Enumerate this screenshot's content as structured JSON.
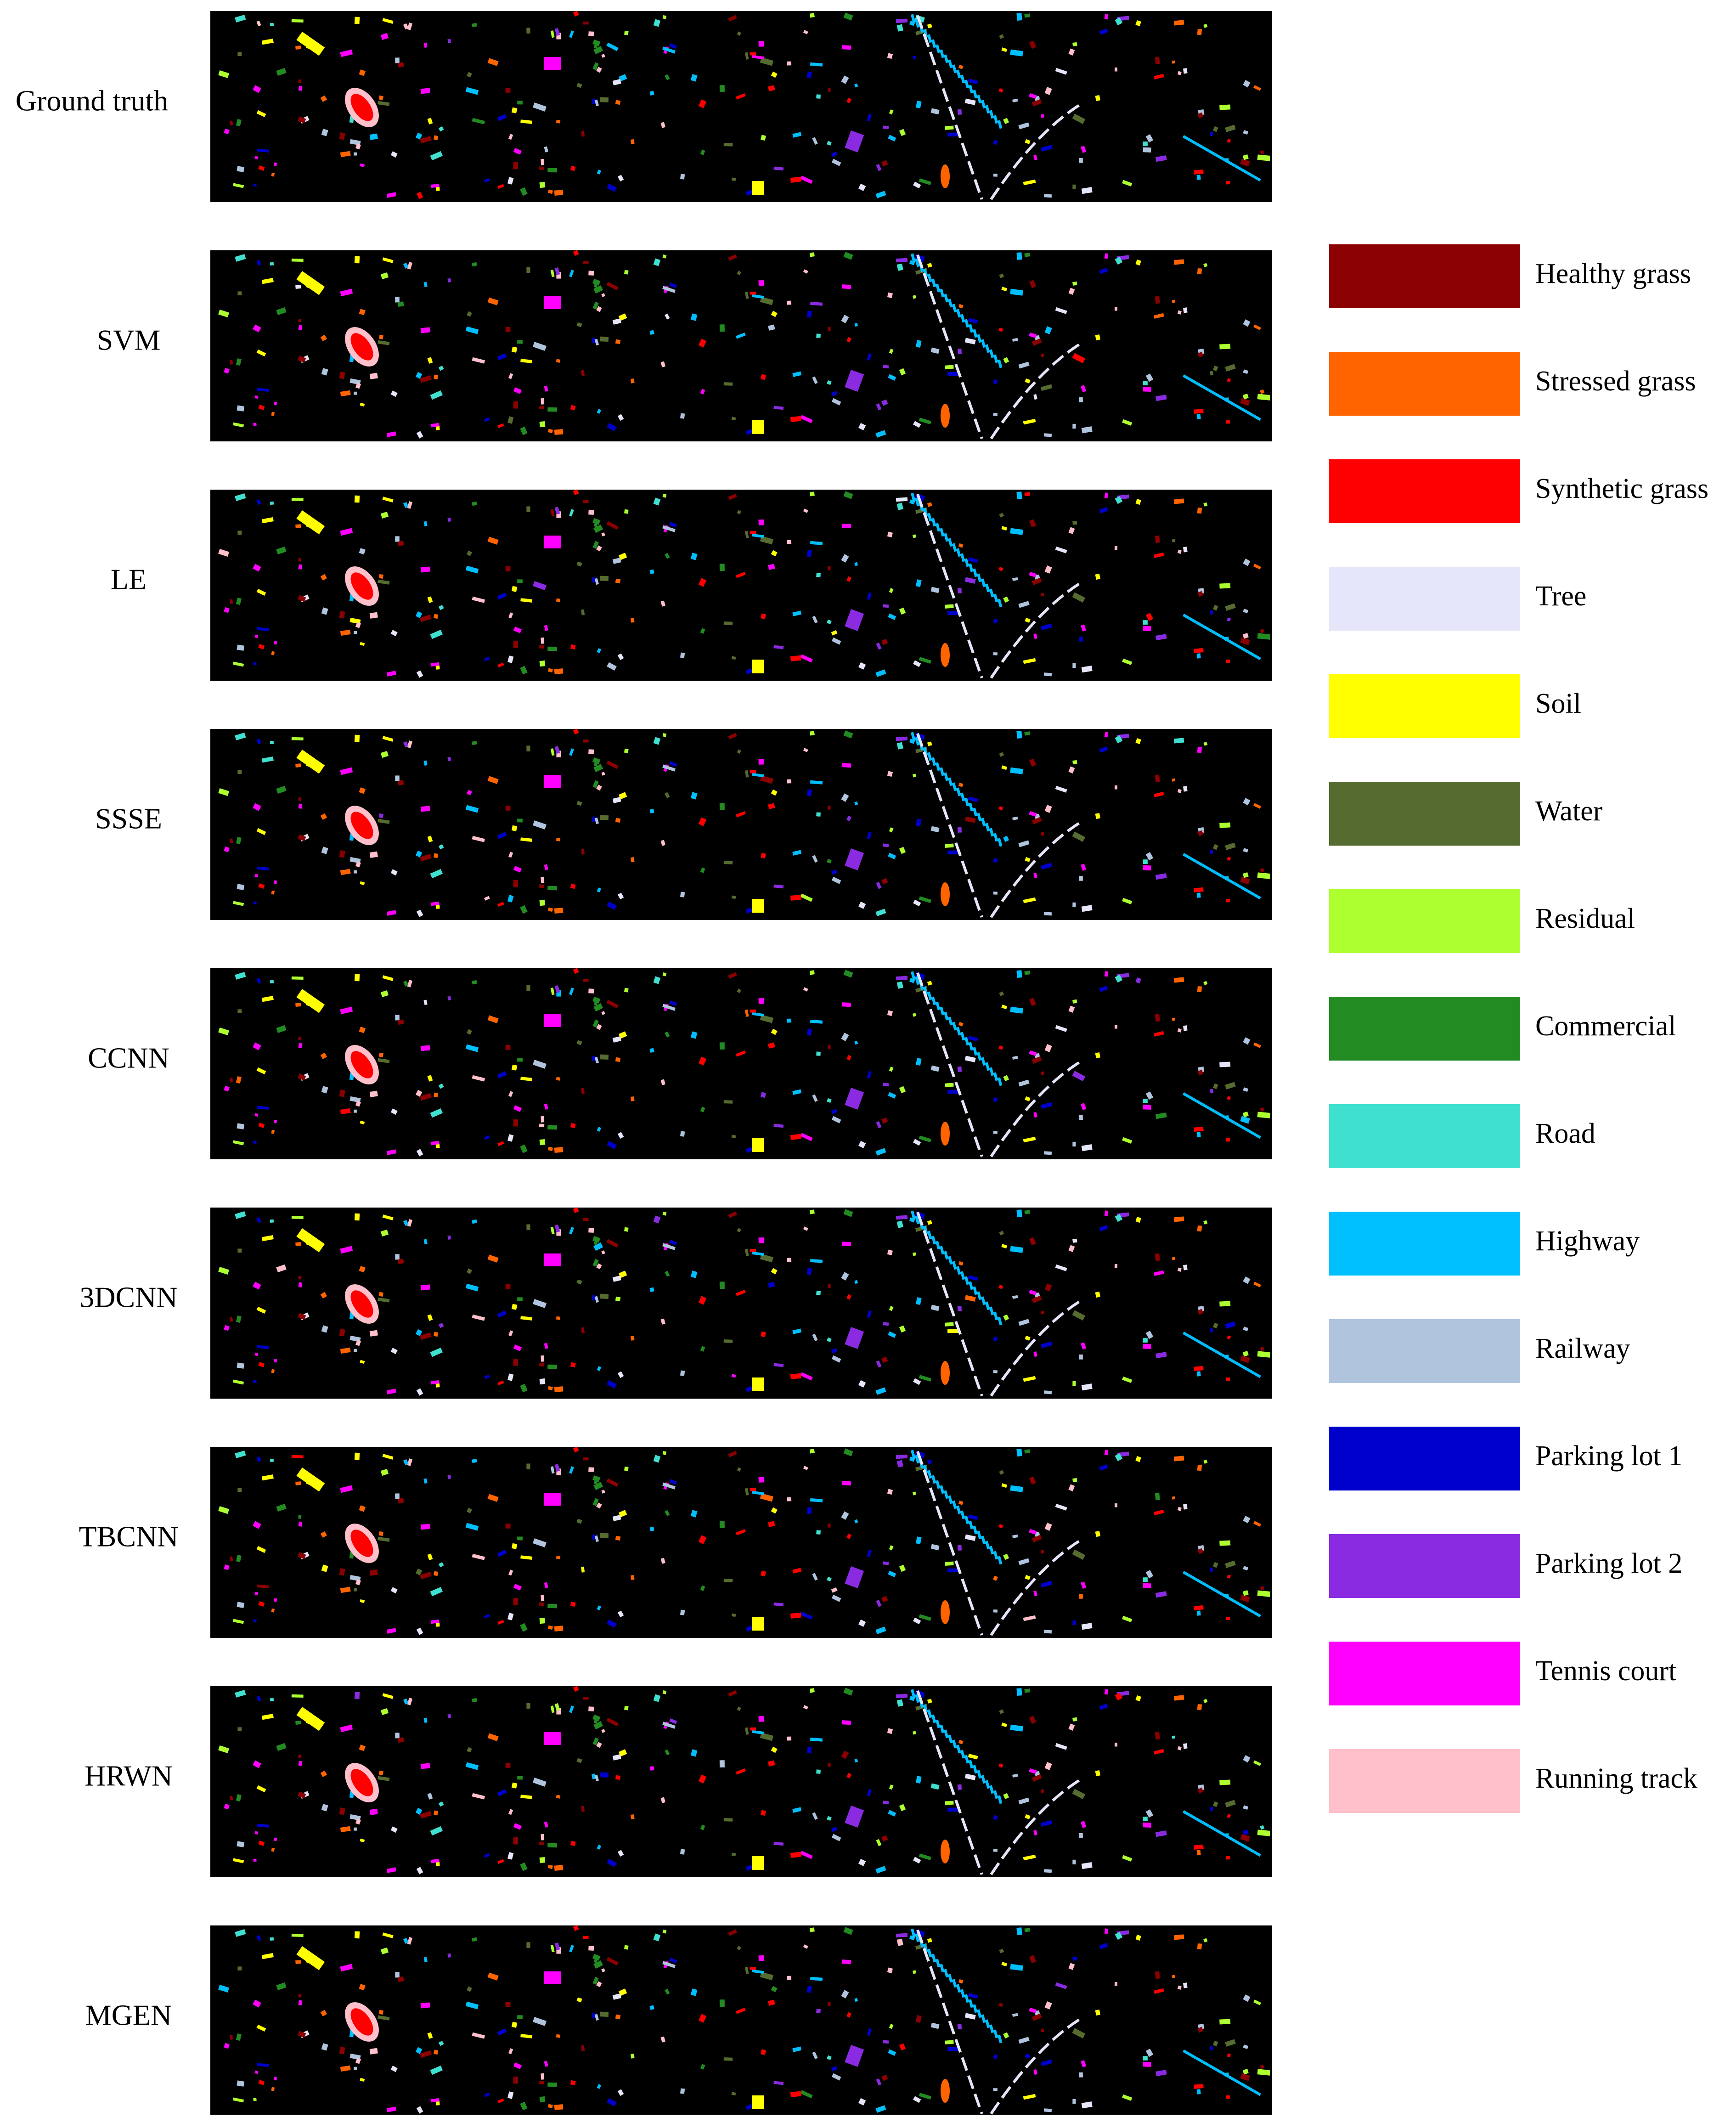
{
  "rows": [
    {
      "label": "Ground truth"
    },
    {
      "label": "SVM"
    },
    {
      "label": "LE"
    },
    {
      "label": "SSSE"
    },
    {
      "label": "CCNN"
    },
    {
      "label": "3DCNN"
    },
    {
      "label": "TBCNN"
    },
    {
      "label": "HRWN"
    },
    {
      "label": "MGEN"
    }
  ],
  "legend": [
    {
      "label": "Healthy grass",
      "color": "#8b0000"
    },
    {
      "label": "Stressed grass",
      "color": "#ff6400"
    },
    {
      "label": "Synthetic grass",
      "color": "#ff0000"
    },
    {
      "label": "Tree",
      "color": "#e6e6fa"
    },
    {
      "label": "Soil",
      "color": "#ffff00"
    },
    {
      "label": "Water",
      "color": "#556b2f"
    },
    {
      "label": "Residual",
      "color": "#adff2f"
    },
    {
      "label": "Commercial",
      "color": "#228b22"
    },
    {
      "label": "Road",
      "color": "#40e0d0"
    },
    {
      "label": "Highway",
      "color": "#00bfff"
    },
    {
      "label": "Railway",
      "color": "#b0c4de"
    },
    {
      "label": "Parking lot 1",
      "color": "#0000cd"
    },
    {
      "label": "Parking lot 2",
      "color": "#8a2be2"
    },
    {
      "label": "Tennis court",
      "color": "#ff00ff"
    },
    {
      "label": "Running track",
      "color": "#ffc0cb"
    }
  ]
}
